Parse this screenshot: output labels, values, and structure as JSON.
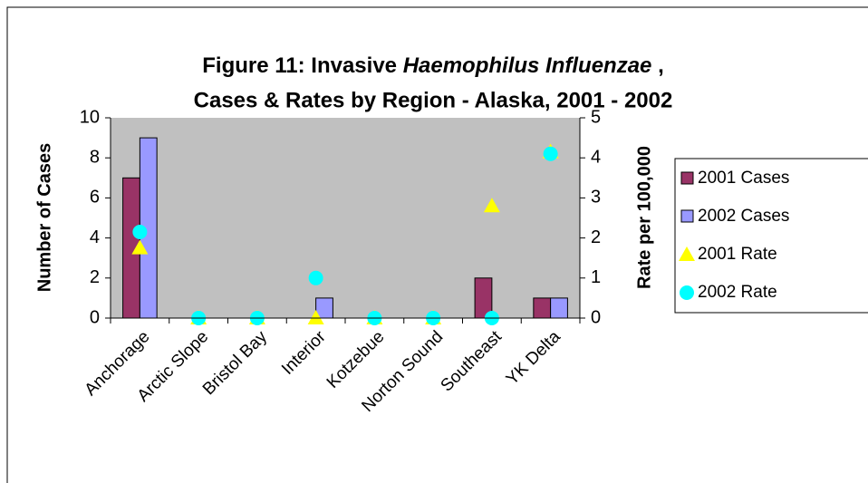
{
  "chart_data": {
    "type": "bar",
    "title": [
      "Figure 11:  Invasive ",
      "Haemophilus Influenzae",
      " ,",
      "Cases & Rates by Region - Alaska, 2001 - 2002"
    ],
    "ylabel": "Number of Cases",
    "y2label": "Rate per 100,000",
    "categories": [
      "Anchorage",
      "Arctic Slope",
      "Bristol Bay",
      "Interior",
      "Kotzebue",
      "Norton Sound",
      "Southeast",
      "YK Delta"
    ],
    "series": [
      {
        "name": "2001 Cases",
        "type": "bar",
        "color": "#993366",
        "values": [
          7,
          0,
          0,
          0,
          0,
          0,
          2,
          1
        ]
      },
      {
        "name": "2002 Cases",
        "type": "bar",
        "color": "#9999ff",
        "values": [
          9,
          0,
          0,
          1,
          0,
          0,
          0,
          1
        ]
      },
      {
        "name": "2001 Rate",
        "type": "scatter",
        "marker": "triangle",
        "axis": "y2",
        "color": "#ffff00",
        "values": [
          1.75,
          0,
          0,
          0,
          0,
          0,
          2.8,
          4.15
        ]
      },
      {
        "name": "2002 Rate",
        "type": "scatter",
        "marker": "circle",
        "axis": "y2",
        "color": "#00ffff",
        "values": [
          2.15,
          0,
          0,
          1.0,
          0,
          0,
          0,
          4.1
        ]
      }
    ],
    "ylim": [
      0,
      10
    ],
    "yticks": [
      0,
      2,
      4,
      6,
      8,
      10
    ],
    "y2lim": [
      0,
      5
    ],
    "y2ticks": [
      0,
      1,
      2,
      3,
      4,
      5
    ],
    "plot_background": "#c0c0c0",
    "legend": "right"
  }
}
